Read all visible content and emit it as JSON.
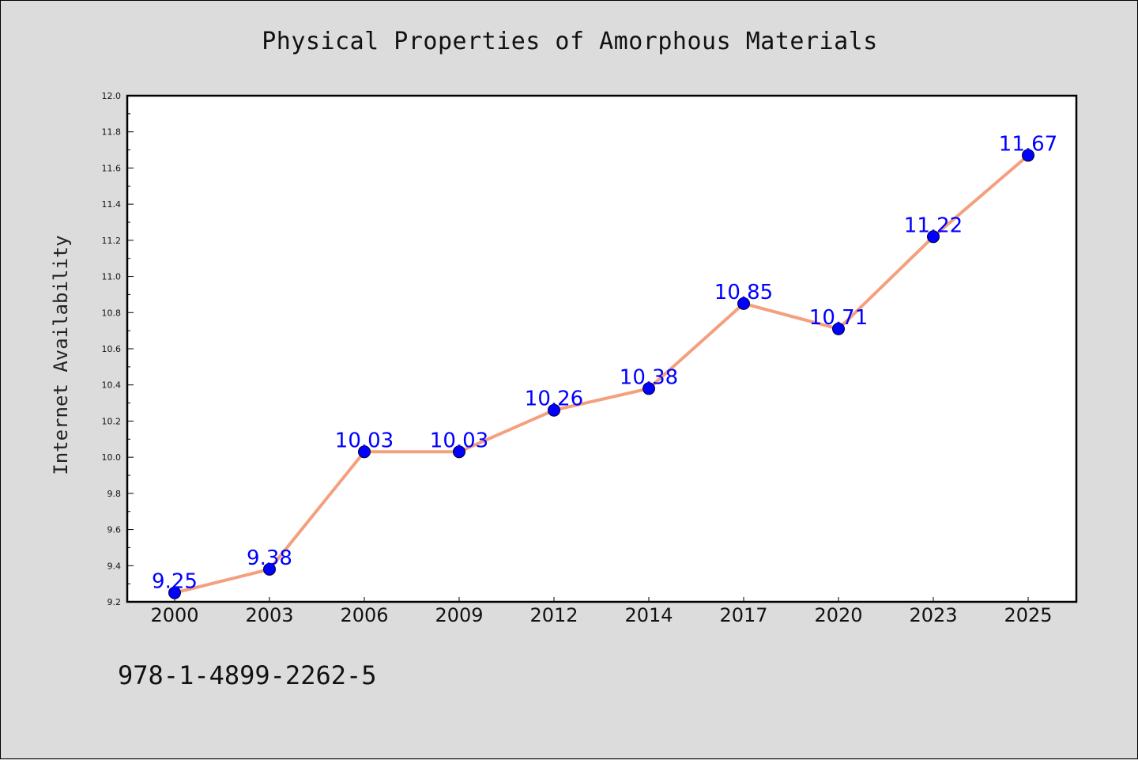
{
  "chart_data": {
    "type": "line",
    "title": "Physical Properties of Amorphous Materials",
    "xlabel": "",
    "ylabel": "Internet Availability",
    "categories": [
      "2000",
      "2003",
      "2006",
      "2009",
      "2012",
      "2014",
      "2017",
      "2020",
      "2023",
      "2025"
    ],
    "values": [
      9.25,
      9.38,
      10.03,
      10.03,
      10.26,
      10.38,
      10.85,
      10.71,
      11.22,
      11.67
    ],
    "data_labels": [
      "9.25",
      "9.38",
      "10.03",
      "10.03",
      "10.26",
      "10.38",
      "10.85",
      "10.71",
      "11.22",
      "11.67"
    ],
    "ylim": [
      9.2,
      12.0
    ],
    "yticks": [
      "9.2",
      "9.4",
      "9.6",
      "9.8",
      "10.0",
      "10.2",
      "10.4",
      "10.6",
      "10.8",
      "11.0",
      "11.2",
      "11.4",
      "11.6",
      "11.8",
      "12.0"
    ],
    "grid": false,
    "legend": "none",
    "colors": {
      "line": "#f4a07e",
      "marker": "#0000ff",
      "data_label": "#0000ff",
      "plot_background": "#ffffff",
      "figure_background": "#dcdcdc"
    }
  },
  "footer": {
    "identifier": "978-1-4899-2262-5"
  }
}
